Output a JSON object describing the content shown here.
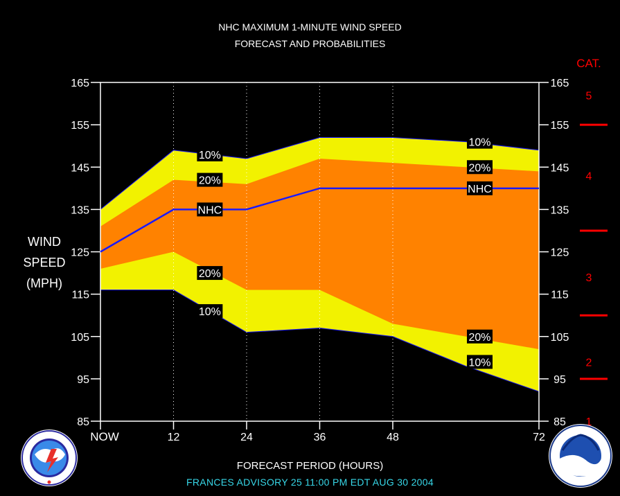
{
  "title_line1": "NHC MAXIMUM 1-MINUTE WIND SPEED",
  "title_line2": "FORECAST AND PROBABILITIES",
  "cat_title": "CAT.",
  "advisory": "FRANCES    ADVISORY  25 11:00 PM EDT AUG 30 2004",
  "colors": {
    "background": "#000000",
    "band_10": "#f2f200",
    "band_20": "#ff8200",
    "nhc_line": "#1a1aff",
    "category": "#ff0000",
    "advisory_text": "#37d7e8"
  },
  "logos": {
    "left": "nws-logo",
    "right": "noaa-logo"
  },
  "chart_data": {
    "type": "area",
    "xlabel": "FORECAST PERIOD (HOURS)",
    "ylabel_lines": [
      "WIND",
      "SPEED",
      "(MPH)"
    ],
    "x_ticks": [
      0,
      12,
      24,
      36,
      48,
      72
    ],
    "x_tick_labels": [
      "NOW",
      "12",
      "24",
      "36",
      "48",
      "72"
    ],
    "xlim": [
      0,
      72
    ],
    "ylim": [
      85,
      165
    ],
    "y_ticks": [
      85,
      95,
      105,
      115,
      125,
      135,
      145,
      155,
      165
    ],
    "grid_x": true,
    "x": [
      0,
      12,
      24,
      36,
      48,
      60,
      72
    ],
    "series": [
      {
        "name": "10%",
        "values_upper": [
          135,
          149,
          147,
          152,
          152,
          151,
          149
        ],
        "values_lower": [
          116,
          116,
          106,
          107,
          105,
          98,
          92
        ]
      },
      {
        "name": "20%",
        "values_upper": [
          131,
          142,
          141,
          147,
          146,
          145,
          144
        ],
        "values_lower": [
          121,
          125,
          116,
          116,
          108,
          105,
          102
        ]
      },
      {
        "name": "NHC",
        "values": [
          125,
          135,
          135,
          140,
          140,
          140,
          140
        ]
      }
    ],
    "annotations": [
      {
        "text": "10%",
        "x": 15,
        "y": 148
      },
      {
        "text": "20%",
        "x": 15,
        "y": 142
      },
      {
        "text": "NHC",
        "x": 15,
        "y": 135
      },
      {
        "text": "20%",
        "x": 15,
        "y": 120
      },
      {
        "text": "10%",
        "x": 15,
        "y": 111
      },
      {
        "text": "10%",
        "x": 60,
        "y": 151
      },
      {
        "text": "20%",
        "x": 60,
        "y": 145
      },
      {
        "text": "NHC",
        "x": 60,
        "y": 140
      },
      {
        "text": "20%",
        "x": 60,
        "y": 105
      },
      {
        "text": "10%",
        "x": 60,
        "y": 99
      }
    ],
    "categories_scale": {
      "labels": [
        {
          "text": "5",
          "y": 162
        },
        {
          "text": "4",
          "y": 143
        },
        {
          "text": "3",
          "y": 119
        },
        {
          "text": "2",
          "y": 99
        },
        {
          "text": "1",
          "y": 85
        }
      ],
      "thresholds": [
        155,
        130,
        110,
        95
      ]
    }
  }
}
